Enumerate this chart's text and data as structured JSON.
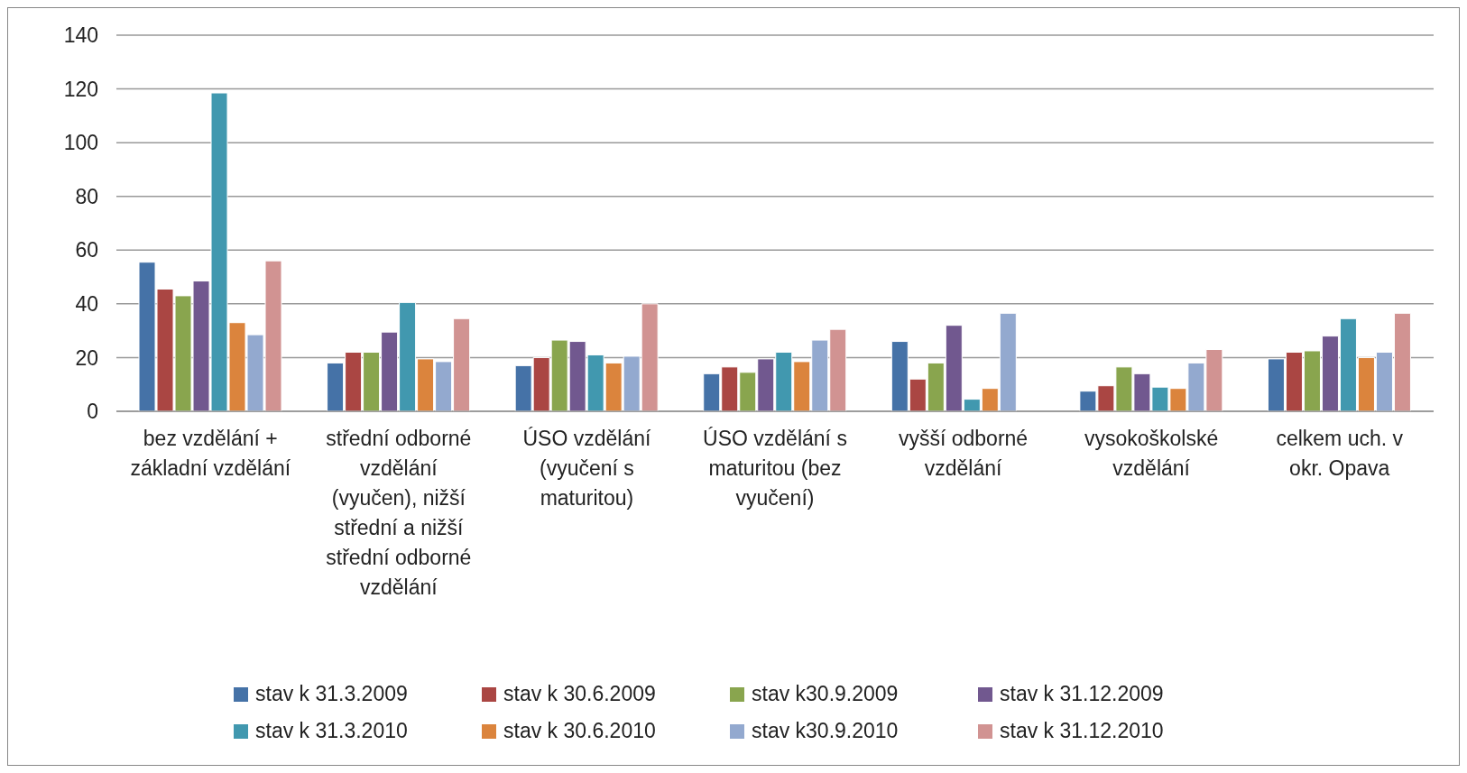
{
  "chart_data": {
    "type": "bar",
    "categories": [
      "bez vzdělání + základní vzdělání",
      "střední odborné vzdělání (vyučen), nižší střední  a nižší střední odborné vzdělání",
      "ÚSO vzdělání (vyučení s maturitou)",
      "ÚSO vzdělání s maturitou (bez vyučení)",
      "vyšší odborné vzdělání",
      "vysokoškolské vzdělání",
      "celkem uch. v okr. Opava"
    ],
    "series": [
      {
        "name": "stav k 31.3.2009",
        "color": "#4572a7",
        "values": [
          55.5,
          18,
          17,
          14,
          26,
          7.5,
          19.5
        ]
      },
      {
        "name": "stav k 30.6.2009",
        "color": "#aa4643",
        "values": [
          45.5,
          22,
          20,
          16.5,
          12,
          9.5,
          22
        ]
      },
      {
        "name": "stav k30.9.2009",
        "color": "#89a54e",
        "values": [
          43,
          22,
          26.5,
          14.5,
          18,
          16.5,
          22.5
        ]
      },
      {
        "name": "stav k 31.12.2009",
        "color": "#71588f",
        "values": [
          48.5,
          29.5,
          26,
          19.5,
          32,
          14,
          28
        ]
      },
      {
        "name": "stav k 31.3.2010",
        "color": "#4198af",
        "values": [
          118.5,
          40.5,
          21,
          22,
          4.5,
          9,
          34.5
        ]
      },
      {
        "name": "stav k 30.6.2010",
        "color": "#db843d",
        "values": [
          33,
          19.5,
          18,
          18.5,
          8.5,
          8.5,
          20
        ]
      },
      {
        "name": "stav k30.9.2010",
        "color": "#93a9cf",
        "values": [
          28.5,
          18.5,
          20.5,
          26.5,
          36.5,
          18,
          22
        ]
      },
      {
        "name": "stav k 31.12.2010",
        "color": "#d19392",
        "values": [
          56,
          34.5,
          40,
          30.5,
          null,
          23,
          36.5
        ]
      }
    ],
    "ylim": [
      0,
      140
    ],
    "yticks": [
      0,
      20,
      40,
      60,
      80,
      100,
      120,
      140
    ],
    "grid": "y",
    "legend": "bottom"
  }
}
